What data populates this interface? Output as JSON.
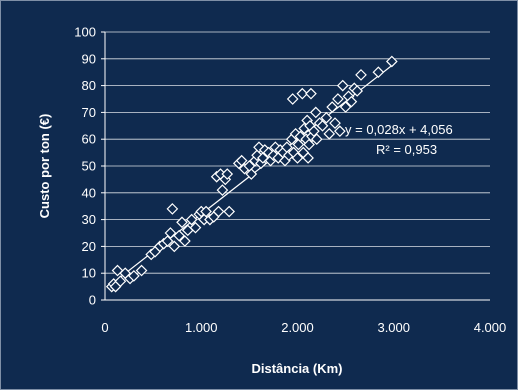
{
  "chart_data": {
    "type": "scatter",
    "title": "",
    "xlabel": "Distância (Km)",
    "ylabel": "Custo por ton (€)",
    "xlim": [
      0,
      4000
    ],
    "ylim": [
      0,
      100
    ],
    "x_ticks": [
      0,
      1000,
      2000,
      3000,
      4000
    ],
    "x_tick_labels": [
      "0",
      "1.000",
      "2.000",
      "3.000",
      "4.000"
    ],
    "y_ticks": [
      0,
      10,
      20,
      30,
      40,
      50,
      60,
      70,
      80,
      90,
      100
    ],
    "y_tick_labels": [
      "0",
      "10",
      "20",
      "30",
      "40",
      "50",
      "60",
      "70",
      "80",
      "90",
      "100"
    ],
    "grid": "horizontal",
    "marker": "diamond-outline",
    "colors": {
      "background": "#0f2a4f",
      "marker": "#ffffff",
      "trendline": "#ffffff",
      "grid": "#ffffff"
    },
    "trendline": {
      "slope": 0.028,
      "intercept": 4.056
    },
    "annotations": {
      "equation": "y = 0,028x + 4,056",
      "r_squared": "R² = 0,953"
    },
    "points": [
      [
        70,
        5
      ],
      [
        90,
        6
      ],
      [
        110,
        5
      ],
      [
        130,
        11
      ],
      [
        160,
        7
      ],
      [
        210,
        10
      ],
      [
        260,
        8
      ],
      [
        300,
        9
      ],
      [
        380,
        11
      ],
      [
        480,
        17
      ],
      [
        520,
        18
      ],
      [
        570,
        20
      ],
      [
        610,
        21
      ],
      [
        650,
        22
      ],
      [
        680,
        25
      ],
      [
        700,
        34
      ],
      [
        720,
        20
      ],
      [
        770,
        24
      ],
      [
        800,
        29
      ],
      [
        830,
        22
      ],
      [
        860,
        26
      ],
      [
        900,
        30
      ],
      [
        940,
        27
      ],
      [
        980,
        32
      ],
      [
        1000,
        33
      ],
      [
        1030,
        30
      ],
      [
        1050,
        33
      ],
      [
        1090,
        30
      ],
      [
        1130,
        31
      ],
      [
        1160,
        46
      ],
      [
        1180,
        33
      ],
      [
        1200,
        47
      ],
      [
        1220,
        41
      ],
      [
        1250,
        45
      ],
      [
        1270,
        47
      ],
      [
        1290,
        33
      ],
      [
        1390,
        51
      ],
      [
        1420,
        52
      ],
      [
        1450,
        49
      ],
      [
        1500,
        50
      ],
      [
        1520,
        47
      ],
      [
        1560,
        52
      ],
      [
        1580,
        54
      ],
      [
        1600,
        57
      ],
      [
        1620,
        51
      ],
      [
        1640,
        53
      ],
      [
        1660,
        56
      ],
      [
        1700,
        55
      ],
      [
        1720,
        52
      ],
      [
        1750,
        54
      ],
      [
        1770,
        57
      ],
      [
        1800,
        53
      ],
      [
        1820,
        56
      ],
      [
        1850,
        55
      ],
      [
        1870,
        52
      ],
      [
        1890,
        57
      ],
      [
        1910,
        54
      ],
      [
        1940,
        60
      ],
      [
        1950,
        75
      ],
      [
        1960,
        55
      ],
      [
        1980,
        62
      ],
      [
        2000,
        53
      ],
      [
        2010,
        58
      ],
      [
        2030,
        61
      ],
      [
        2050,
        77
      ],
      [
        2060,
        55
      ],
      [
        2070,
        64
      ],
      [
        2090,
        60
      ],
      [
        2100,
        67
      ],
      [
        2110,
        53
      ],
      [
        2120,
        58
      ],
      [
        2130,
        65
      ],
      [
        2140,
        77
      ],
      [
        2150,
        61
      ],
      [
        2170,
        63
      ],
      [
        2190,
        70
      ],
      [
        2200,
        60
      ],
      [
        2230,
        66
      ],
      [
        2260,
        65
      ],
      [
        2300,
        68
      ],
      [
        2330,
        62
      ],
      [
        2360,
        72
      ],
      [
        2390,
        66
      ],
      [
        2420,
        75
      ],
      [
        2440,
        63
      ],
      [
        2470,
        80
      ],
      [
        2500,
        72
      ],
      [
        2530,
        76
      ],
      [
        2560,
        74
      ],
      [
        2590,
        79
      ],
      [
        2620,
        78
      ],
      [
        2660,
        84
      ],
      [
        2840,
        85
      ],
      [
        2980,
        89
      ]
    ]
  }
}
